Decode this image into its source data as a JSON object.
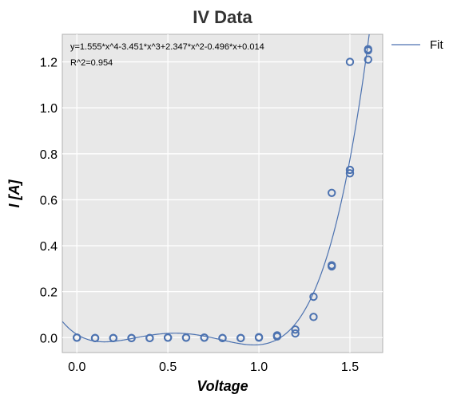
{
  "chart_data": {
    "type": "scatter",
    "title": "IV Data",
    "xlabel": "Voltage",
    "ylabel": "I [A]",
    "xlim": [
      -0.08,
      1.68
    ],
    "ylim": [
      -0.065,
      1.32
    ],
    "xticks": [
      0.0,
      0.5,
      1.0,
      1.5
    ],
    "xtick_labels": [
      "0.0",
      "0.5",
      "1.0",
      "1.5"
    ],
    "yticks": [
      0.0,
      0.2,
      0.4,
      0.6,
      0.8,
      1.0,
      1.2
    ],
    "ytick_labels": [
      "0.0",
      "0.2",
      "0.4",
      "0.6",
      "0.8",
      "1.0",
      "1.2"
    ],
    "grid": true,
    "legend_position": "outside-top-right",
    "colors": {
      "series": "#4c72b0",
      "plot_background": "#e8e8e8",
      "grid": "#ffffff"
    },
    "series": [
      {
        "kind": "scatter",
        "marker": "open-circle",
        "x": [
          0.0,
          0.0,
          0.1,
          0.1,
          0.2,
          0.2,
          0.3,
          0.3,
          0.4,
          0.4,
          0.5,
          0.5,
          0.6,
          0.6,
          0.7,
          0.7,
          0.8,
          0.8,
          0.9,
          0.9,
          1.0,
          1.0,
          1.1,
          1.1,
          1.2,
          1.2,
          1.3,
          1.3,
          1.4,
          1.4,
          1.4,
          1.5,
          1.5,
          1.5,
          1.6,
          1.6,
          1.6
        ],
        "y": [
          0.0,
          0.0,
          -0.002,
          -0.002,
          -0.002,
          -0.002,
          -0.002,
          -0.002,
          -0.002,
          -0.002,
          0.0,
          0.0,
          0.0,
          0.0,
          0.0,
          0.0,
          -0.002,
          -0.002,
          -0.002,
          -0.002,
          0.0,
          0.002,
          0.01,
          0.005,
          0.035,
          0.018,
          0.178,
          0.09,
          0.63,
          0.31,
          0.315,
          1.2,
          0.73,
          0.715,
          1.255,
          1.25,
          1.21
        ]
      },
      {
        "kind": "line",
        "name": "Fit",
        "coefficients": [
          1.555,
          -3.451,
          2.347,
          -0.496,
          0.014
        ]
      }
    ],
    "annotations": [
      "y=1.555*x^4-3.451*x^3+2.347*x^2-0.496*x+0.014",
      "R^2=0.954"
    ]
  }
}
